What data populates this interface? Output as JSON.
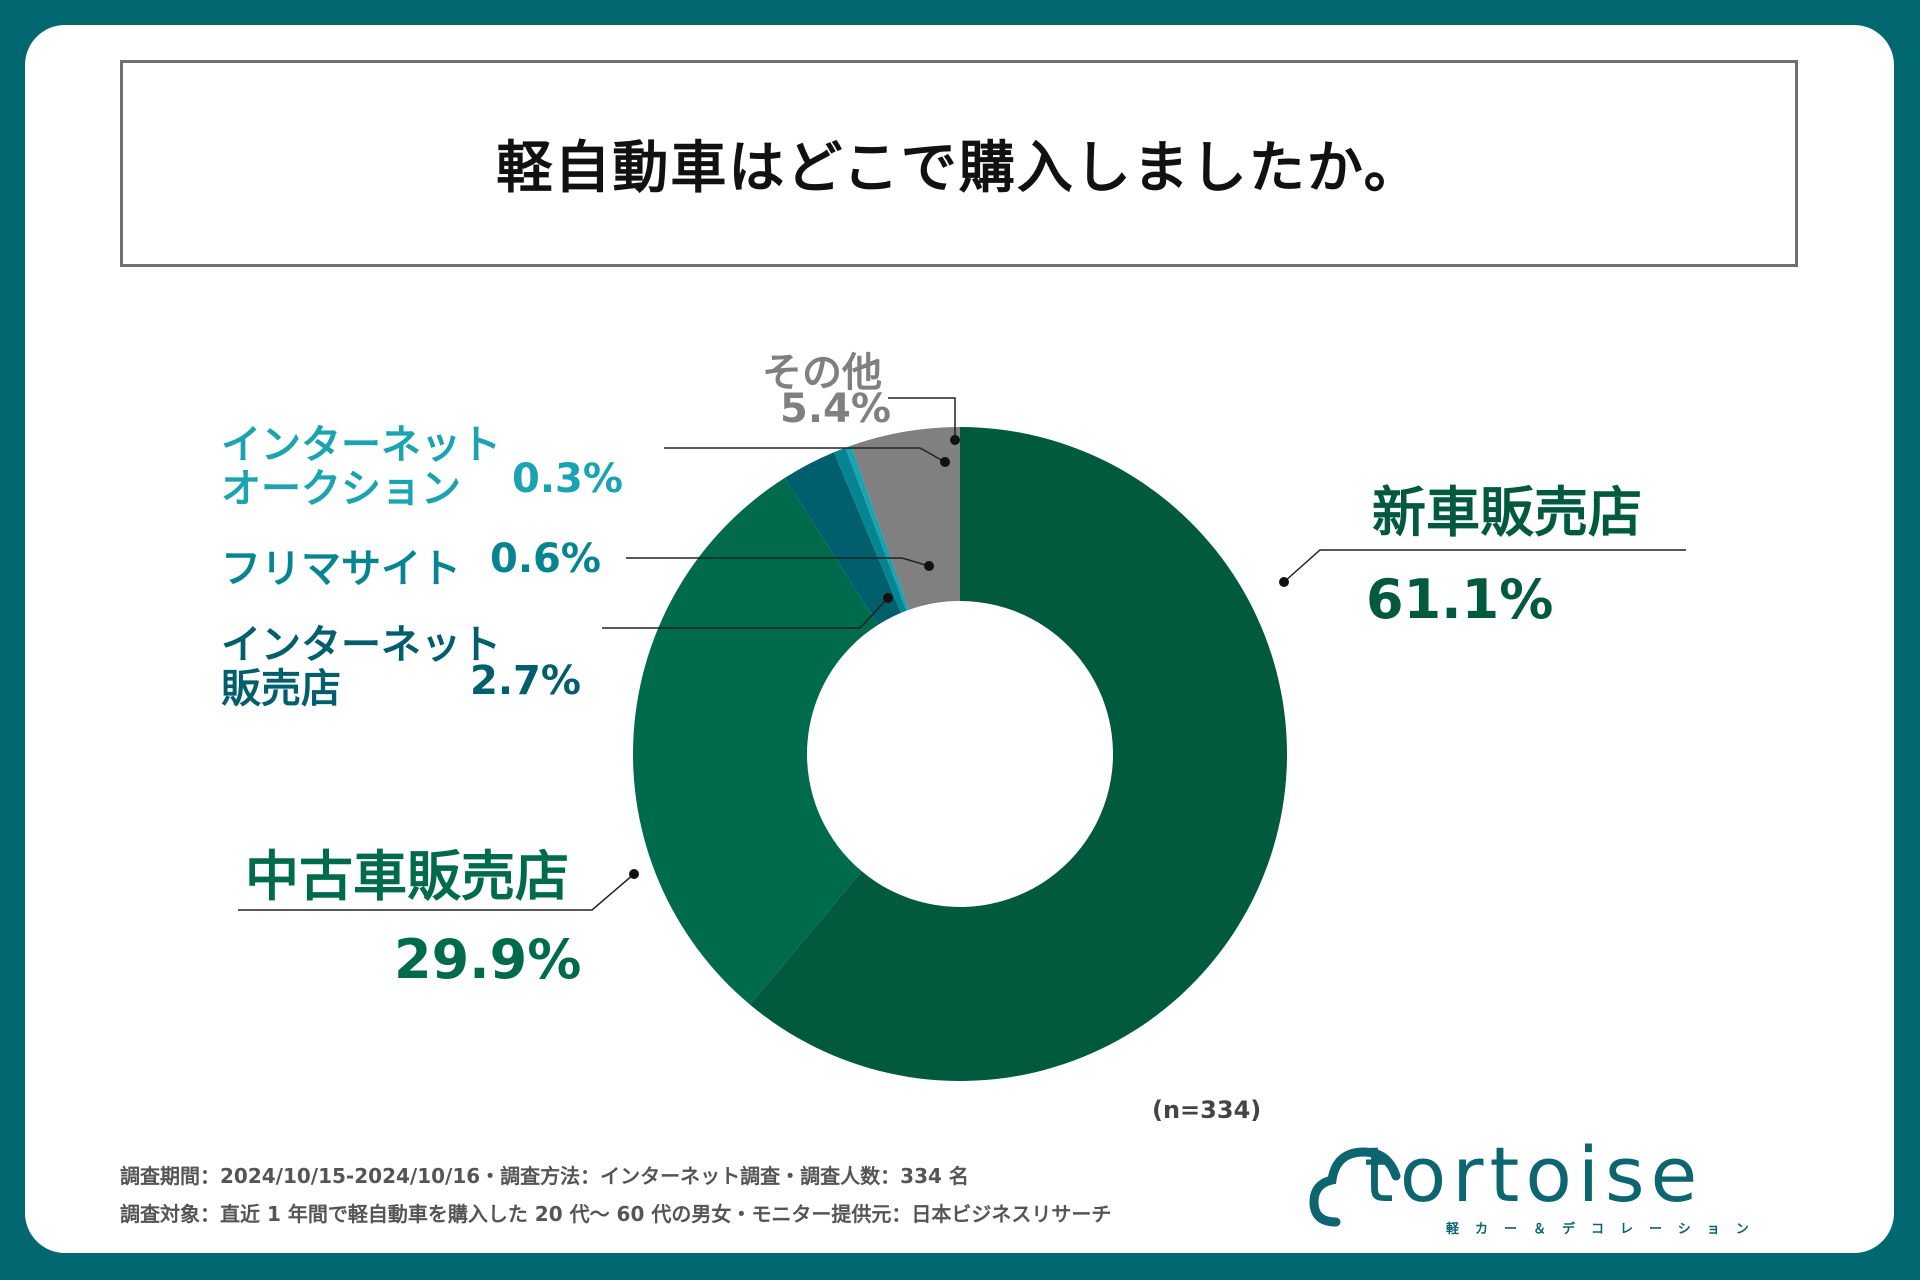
{
  "title": "軽自動車はどこで購入しましたか。",
  "chart_data": {
    "type": "pie",
    "title": "軽自動車はどこで購入しましたか。",
    "categories": [
      "新車販売店",
      "中古車販売店",
      "インターネット販売店",
      "フリマサイト",
      "インターネットオークション",
      "その他"
    ],
    "values": [
      61.1,
      29.9,
      2.7,
      0.6,
      0.3,
      5.4
    ],
    "colors": [
      "#015a3d",
      "#006a4c",
      "#015e6c",
      "#058592",
      "#1aa3b0",
      "#808080"
    ],
    "n_note": "(n=334)"
  },
  "labels": {
    "new": {
      "name": "新車販売店",
      "pct": "61.1%"
    },
    "used": {
      "name": "中古車販売店",
      "pct": "29.9%"
    },
    "online_shop": {
      "name_line1": "インターネット",
      "name_line2": "販売店",
      "pct": "2.7%"
    },
    "flea": {
      "name": "フリマサイト",
      "pct": "0.6%"
    },
    "auction": {
      "name_line1": "インターネット",
      "name_line2": "オークション",
      "pct": "0.3%"
    },
    "other": {
      "name": "その他",
      "pct": "5.4%"
    }
  },
  "footnotes": {
    "line1": "調査期間：2024/10/15-2024/10/16・調査方法：インターネット調査・調査人数：334 名",
    "line2": "調査対象：直近 1 年間で軽自動車を購入した 20 代～ 60 代の男女・モニター提供元：日本ビジネスリサーチ"
  },
  "logo": {
    "word": "tortoise",
    "sub": "軽カー＆デコレーション",
    "color": "#0d6570"
  }
}
